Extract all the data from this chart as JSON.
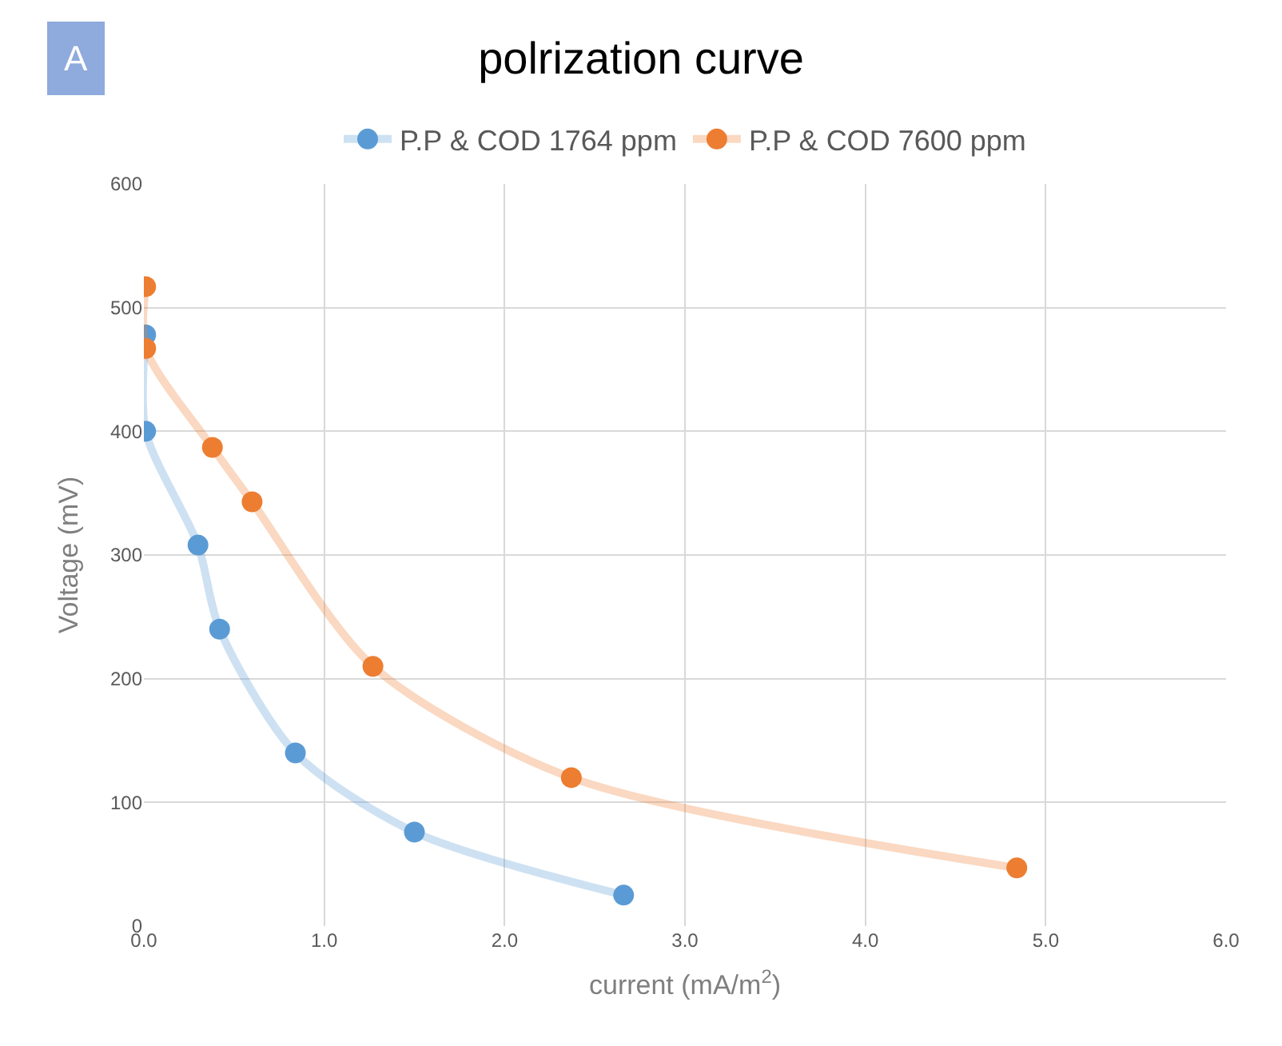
{
  "chart_data": {
    "type": "line",
    "title": "polrization curve",
    "xlabel": "current (mA/m$^{2}$)",
    "ylabel": "Voltage (mV)",
    "annotations": [
      "A"
    ],
    "series": [
      {
        "name": "P.P & COD 1764 ppm",
        "color": "#5b9bd5",
        "x": [
          0.01,
          0.01,
          0.3,
          0.42,
          0.84,
          1.5,
          2.66
        ],
        "values": [
          478,
          400,
          308,
          240,
          140,
          76,
          25
        ]
      },
      {
        "name": "P.P & COD 7600 ppm",
        "color": "#ed7d31",
        "x": [
          0.01,
          0.01,
          0.38,
          0.6,
          1.27,
          2.37,
          4.84
        ],
        "values": [
          517,
          467,
          387,
          343,
          210,
          120,
          47
        ]
      }
    ],
    "xlim": [
      0,
      6
    ],
    "xticks": [
      {
        "value": 0,
        "label": "0.0"
      },
      {
        "value": 1,
        "label": "1.0"
      },
      {
        "value": 2,
        "label": "2.0"
      },
      {
        "value": 3,
        "label": "3.0"
      },
      {
        "value": 4,
        "label": "4.0"
      },
      {
        "value": 5,
        "label": "5.0"
      },
      {
        "value": 6,
        "label": "6.0"
      }
    ],
    "ylim": [
      0,
      600
    ],
    "yticks": [
      0,
      100,
      200,
      300,
      400,
      500,
      600
    ],
    "grid": true,
    "legend": "top",
    "marker": "circle",
    "line_style": "solid"
  }
}
